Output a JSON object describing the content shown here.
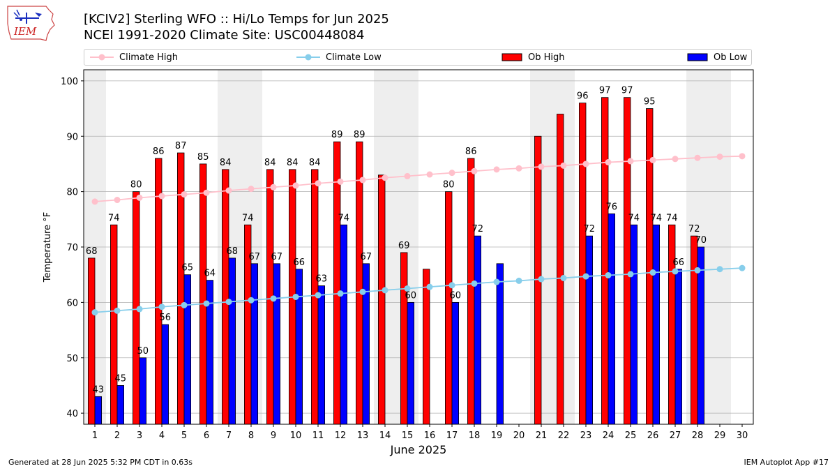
{
  "header": {
    "title_line1": "[KCIV2] Sterling WFO :: Hi/Lo Temps for Jun 2025",
    "title_line2": "NCEI 1991-2020 Climate Site: USC00448084",
    "logo_text": "IEM"
  },
  "footer": {
    "generated": "Generated at 28 Jun 2025 5:32 PM CDT in 0.63s",
    "app": "IEM Autoplot App #17"
  },
  "colors": {
    "ob_high": "#ff0000",
    "ob_low": "#0000ff",
    "climate_high": "#ffc0cb",
    "climate_low": "#87ceeb",
    "weekend_shade": "#eeeeee",
    "grid": "#b0b0b0"
  },
  "chart_data": {
    "type": "bar",
    "title": "[KCIV2] Sterling WFO :: Hi/Lo Temps for Jun 2025",
    "subtitle": "NCEI 1991-2020 Climate Site: USC00448084",
    "xlabel": "June 2025",
    "ylabel": "Temperature °F",
    "ylim": [
      38,
      102
    ],
    "yticks": [
      40,
      50,
      60,
      70,
      80,
      90,
      100
    ],
    "grid": true,
    "legend_placement": "top",
    "categories": [
      "1",
      "2",
      "3",
      "4",
      "5",
      "6",
      "7",
      "8",
      "9",
      "10",
      "11",
      "12",
      "13",
      "14",
      "15",
      "16",
      "17",
      "18",
      "19",
      "20",
      "21",
      "22",
      "23",
      "24",
      "25",
      "26",
      "27",
      "28",
      "29",
      "30"
    ],
    "weekend_days": [
      1,
      7,
      8,
      14,
      15,
      21,
      22,
      28,
      29
    ],
    "series": [
      {
        "name": "Ob High",
        "kind": "bar",
        "values": [
          68,
          74,
          80,
          86,
          87,
          85,
          84,
          74,
          84,
          84,
          84,
          89,
          89,
          83,
          69,
          66,
          80,
          86,
          null,
          null,
          90,
          94,
          96,
          97,
          97,
          95,
          74,
          72,
          null,
          null
        ],
        "labels": [
          true,
          true,
          true,
          true,
          true,
          true,
          true,
          true,
          true,
          true,
          true,
          true,
          true,
          false,
          true,
          false,
          true,
          true,
          false,
          false,
          false,
          false,
          true,
          true,
          true,
          true,
          true,
          true,
          false,
          false
        ]
      },
      {
        "name": "Ob Low",
        "kind": "bar",
        "values": [
          43,
          45,
          50,
          56,
          65,
          64,
          68,
          67,
          67,
          66,
          63,
          74,
          67,
          null,
          60,
          null,
          60,
          72,
          67,
          null,
          null,
          null,
          72,
          76,
          74,
          74,
          66,
          70,
          null,
          null
        ],
        "labels": [
          true,
          true,
          true,
          true,
          true,
          true,
          true,
          true,
          true,
          true,
          true,
          true,
          true,
          false,
          true,
          false,
          true,
          true,
          false,
          false,
          false,
          false,
          true,
          true,
          true,
          true,
          true,
          true,
          false,
          false
        ]
      },
      {
        "name": "Climate High",
        "kind": "line",
        "values": [
          78.2,
          78.5,
          78.9,
          79.2,
          79.5,
          79.8,
          80.2,
          80.5,
          80.8,
          81.1,
          81.5,
          81.8,
          82.1,
          82.5,
          82.8,
          83.1,
          83.4,
          83.7,
          84.0,
          84.2,
          84.5,
          84.7,
          85.0,
          85.3,
          85.5,
          85.7,
          85.9,
          86.1,
          86.3,
          86.4
        ]
      },
      {
        "name": "Climate Low",
        "kind": "line",
        "values": [
          58.2,
          58.5,
          58.8,
          59.2,
          59.5,
          59.8,
          60.1,
          60.4,
          60.7,
          61.0,
          61.3,
          61.6,
          61.9,
          62.2,
          62.5,
          62.8,
          63.1,
          63.4,
          63.7,
          63.9,
          64.2,
          64.4,
          64.7,
          64.9,
          65.1,
          65.4,
          65.6,
          65.8,
          66.0,
          66.2
        ]
      }
    ]
  }
}
